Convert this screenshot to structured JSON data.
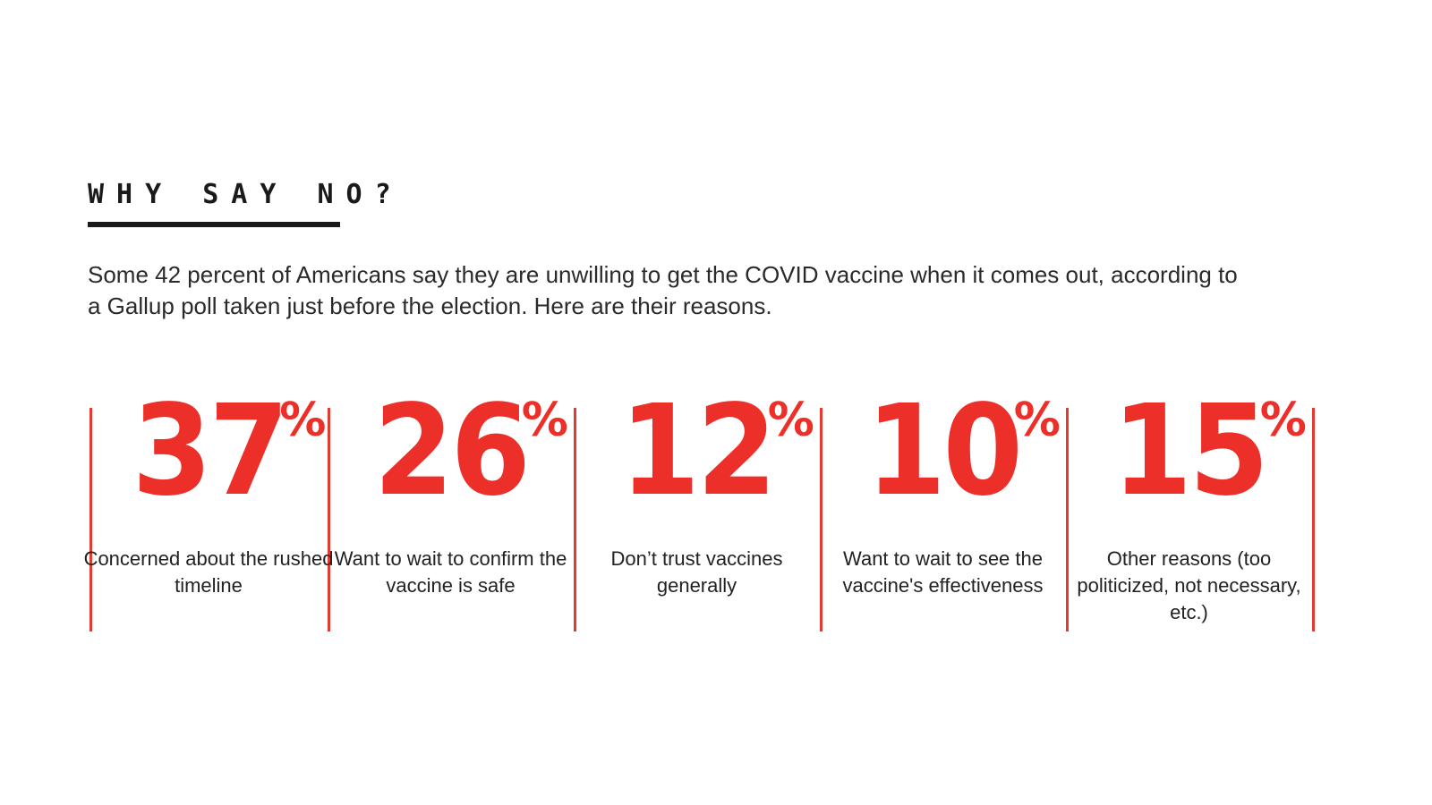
{
  "colors": {
    "accent": "#ed2f2a",
    "divider": "#e53a2f",
    "text": "#1a1a1a"
  },
  "header": {
    "title": "WHY SAY NO?"
  },
  "intro": {
    "text": "Some 42 percent of Americans say they are unwilling to get the COVID vaccine when it comes out, according to a Gallup poll taken just before the election. Here are their reasons."
  },
  "chart_data": {
    "type": "table",
    "title": "WHY SAY NO?",
    "unit": "%",
    "categories": [
      "Concerned about the rushed timeline",
      "Want to wait to confirm the vaccine is safe",
      "Don’t trust vaccines generally",
      "Want to wait to see the vaccine's effectiveness",
      "Other reasons (too politicized, not necessary, etc.)"
    ],
    "values": [
      37,
      26,
      12,
      10,
      15
    ],
    "items": [
      {
        "value": "37",
        "label": "Concerned about the rushed timeline"
      },
      {
        "value": "26",
        "label": "Want to wait to confirm the vaccine is safe"
      },
      {
        "value": "12",
        "label": "Don’t trust vaccines generally"
      },
      {
        "value": "10",
        "label": "Want to wait to see the vaccine's effectiveness"
      },
      {
        "value": "15",
        "label": "Other reasons (too politicized, not necessary, etc.)"
      }
    ]
  }
}
